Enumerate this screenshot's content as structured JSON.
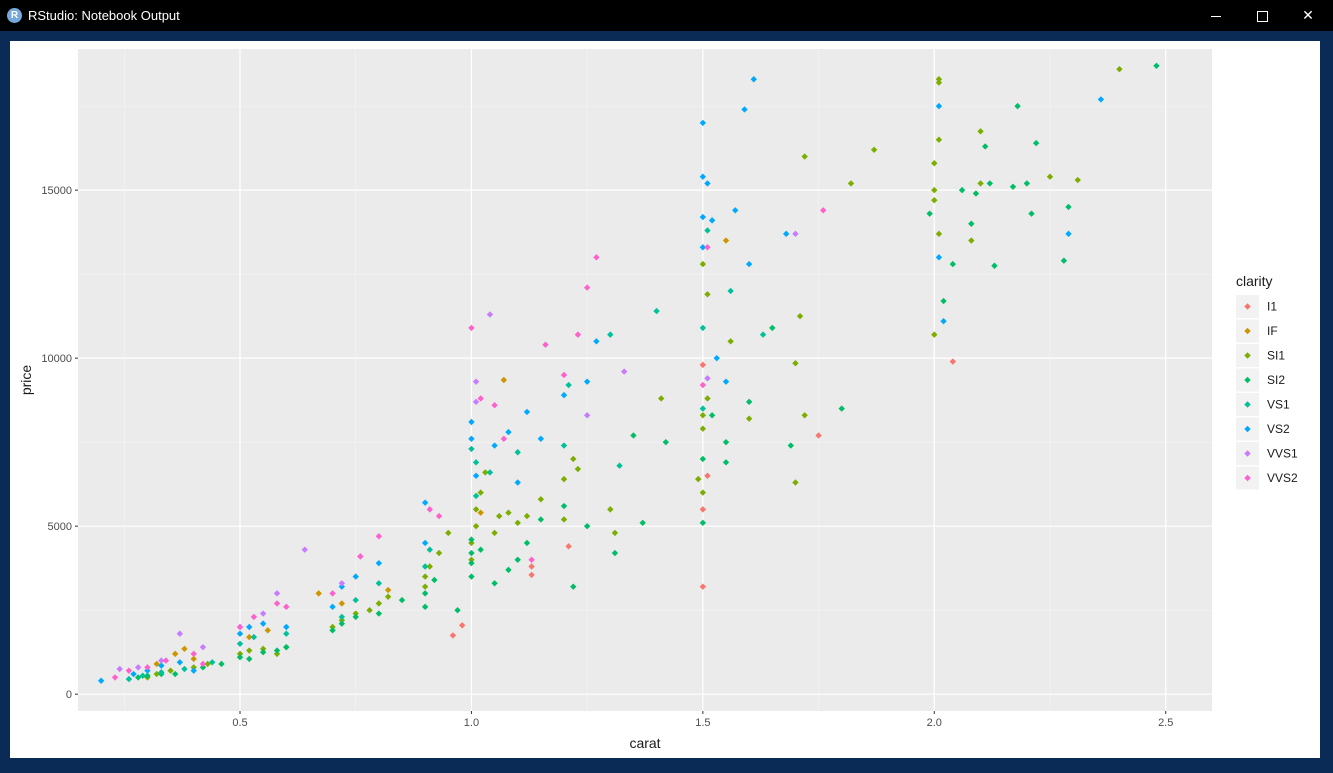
{
  "window": {
    "title": "RStudio: Notebook Output",
    "icon": "R",
    "minimize_icon": "minimize-icon",
    "maximize_icon": "maximize-icon",
    "close_icon": "close-icon",
    "close_glyph": "✕"
  },
  "chart_data": {
    "type": "scatter",
    "title": "",
    "xlabel": "carat",
    "ylabel": "price",
    "xlim": [
      0.15,
      2.6
    ],
    "ylim": [
      -500,
      19200
    ],
    "x_ticks": [
      0.5,
      1.0,
      1.5,
      2.0,
      2.5
    ],
    "x_tick_labels": [
      "0.5",
      "1.0",
      "1.5",
      "2.0",
      "2.5"
    ],
    "y_ticks": [
      0,
      5000,
      10000,
      15000
    ],
    "y_tick_labels": [
      "0",
      "5000",
      "10000",
      "15000"
    ],
    "grid": true,
    "panel_background": "#ebebeb",
    "legend": {
      "title": "clarity",
      "placement": "right"
    },
    "series": [
      {
        "name": "I1",
        "color": "#f8766d",
        "points": [
          [
            1.5,
            3200
          ],
          [
            0.96,
            1750
          ],
          [
            0.98,
            2050
          ],
          [
            1.13,
            3550
          ],
          [
            1.13,
            3800
          ],
          [
            1.21,
            4400
          ],
          [
            1.5,
            5500
          ],
          [
            1.51,
            6500
          ],
          [
            1.5,
            9800
          ],
          [
            1.75,
            7700
          ],
          [
            2.04,
            9900
          ]
        ]
      },
      {
        "name": "IF",
        "color": "#cd9600",
        "points": [
          [
            0.38,
            1350
          ],
          [
            0.36,
            1200
          ],
          [
            0.4,
            1050
          ],
          [
            0.32,
            900
          ],
          [
            0.52,
            1700
          ],
          [
            0.56,
            1900
          ],
          [
            0.67,
            3000
          ],
          [
            0.72,
            2700
          ],
          [
            0.82,
            3100
          ],
          [
            1.07,
            9350
          ],
          [
            1.02,
            5400
          ],
          [
            1.55,
            13500
          ]
        ]
      },
      {
        "name": "SI1",
        "color": "#7cae00",
        "points": [
          [
            0.3,
            500
          ],
          [
            0.32,
            600
          ],
          [
            0.35,
            700
          ],
          [
            0.4,
            800
          ],
          [
            0.43,
            900
          ],
          [
            0.5,
            1200
          ],
          [
            0.52,
            1300
          ],
          [
            0.55,
            1350
          ],
          [
            0.58,
            1200
          ],
          [
            0.6,
            1400
          ],
          [
            0.7,
            2000
          ],
          [
            0.72,
            2200
          ],
          [
            0.75,
            2400
          ],
          [
            0.78,
            2500
          ],
          [
            0.8,
            2700
          ],
          [
            0.82,
            2900
          ],
          [
            0.9,
            3200
          ],
          [
            0.9,
            3500
          ],
          [
            0.91,
            3800
          ],
          [
            0.93,
            4200
          ],
          [
            0.95,
            4800
          ],
          [
            1.0,
            4000
          ],
          [
            1.0,
            4500
          ],
          [
            1.01,
            5000
          ],
          [
            1.01,
            5500
          ],
          [
            1.02,
            6000
          ],
          [
            1.03,
            6600
          ],
          [
            1.05,
            4800
          ],
          [
            1.06,
            5300
          ],
          [
            1.08,
            5400
          ],
          [
            1.1,
            5100
          ],
          [
            1.12,
            5300
          ],
          [
            1.15,
            5800
          ],
          [
            1.2,
            5200
          ],
          [
            1.2,
            6400
          ],
          [
            1.22,
            7000
          ],
          [
            1.23,
            6700
          ],
          [
            1.3,
            5500
          ],
          [
            1.31,
            4800
          ],
          [
            1.41,
            8800
          ],
          [
            1.5,
            7900
          ],
          [
            1.5,
            8300
          ],
          [
            1.51,
            8800
          ],
          [
            1.51,
            11900
          ],
          [
            1.5,
            12800
          ],
          [
            1.5,
            6000
          ],
          [
            1.49,
            6400
          ],
          [
            1.56,
            10500
          ],
          [
            1.6,
            8200
          ],
          [
            1.7,
            9850
          ],
          [
            1.71,
            11250
          ],
          [
            1.72,
            8300
          ],
          [
            1.7,
            6300
          ],
          [
            1.72,
            16000
          ],
          [
            1.82,
            15200
          ],
          [
            1.87,
            16200
          ],
          [
            2.0,
            14700
          ],
          [
            2.0,
            15800
          ],
          [
            2.0,
            15000
          ],
          [
            2.01,
            16500
          ],
          [
            2.01,
            18200
          ],
          [
            2.01,
            18300
          ],
          [
            2.01,
            13700
          ],
          [
            2.08,
            13500
          ],
          [
            2.1,
            15200
          ],
          [
            2.1,
            16750
          ],
          [
            2.25,
            15400
          ],
          [
            2.31,
            15300
          ],
          [
            2.4,
            18600
          ],
          [
            2.0,
            10700
          ]
        ]
      },
      {
        "name": "SI2",
        "color": "#00be67",
        "points": [
          [
            0.28,
            500
          ],
          [
            0.3,
            550
          ],
          [
            0.33,
            600
          ],
          [
            0.36,
            600
          ],
          [
            0.42,
            800
          ],
          [
            0.46,
            900
          ],
          [
            0.5,
            1100
          ],
          [
            0.52,
            1050
          ],
          [
            0.55,
            1250
          ],
          [
            0.58,
            1300
          ],
          [
            0.6,
            1400
          ],
          [
            0.7,
            1900
          ],
          [
            0.72,
            2100
          ],
          [
            0.75,
            2300
          ],
          [
            0.8,
            2400
          ],
          [
            0.85,
            2800
          ],
          [
            0.9,
            2600
          ],
          [
            0.9,
            3000
          ],
          [
            0.92,
            3400
          ],
          [
            0.97,
            2500
          ],
          [
            1.0,
            3500
          ],
          [
            1.0,
            3900
          ],
          [
            1.0,
            4200
          ],
          [
            1.0,
            4600
          ],
          [
            1.02,
            4300
          ],
          [
            1.05,
            3300
          ],
          [
            1.08,
            3700
          ],
          [
            1.1,
            4000
          ],
          [
            1.12,
            4500
          ],
          [
            1.15,
            5200
          ],
          [
            1.2,
            5600
          ],
          [
            1.22,
            3200
          ],
          [
            1.25,
            5000
          ],
          [
            1.31,
            4200
          ],
          [
            1.35,
            7700
          ],
          [
            1.37,
            5100
          ],
          [
            1.42,
            7500
          ],
          [
            1.5,
            7000
          ],
          [
            1.52,
            8300
          ],
          [
            1.5,
            5100
          ],
          [
            1.55,
            6900
          ],
          [
            1.55,
            7500
          ],
          [
            1.6,
            8700
          ],
          [
            1.65,
            10900
          ],
          [
            1.69,
            7400
          ],
          [
            1.8,
            8500
          ],
          [
            1.99,
            14300
          ],
          [
            2.02,
            11700
          ],
          [
            2.04,
            12800
          ],
          [
            2.06,
            15000
          ],
          [
            2.08,
            14000
          ],
          [
            2.09,
            14900
          ],
          [
            2.12,
            15200
          ],
          [
            2.13,
            12750
          ],
          [
            2.17,
            15100
          ],
          [
            2.18,
            17500
          ],
          [
            2.2,
            15200
          ],
          [
            2.21,
            14300
          ],
          [
            2.22,
            16400
          ],
          [
            2.28,
            12900
          ],
          [
            2.29,
            14500
          ],
          [
            2.48,
            18700
          ],
          [
            2.11,
            16300
          ]
        ]
      },
      {
        "name": "VS1",
        "color": "#00c19a",
        "points": [
          [
            0.26,
            450
          ],
          [
            0.29,
            550
          ],
          [
            0.33,
            650
          ],
          [
            0.38,
            750
          ],
          [
            0.44,
            950
          ],
          [
            0.5,
            1500
          ],
          [
            0.53,
            1700
          ],
          [
            0.6,
            1800
          ],
          [
            0.72,
            2300
          ],
          [
            0.75,
            2800
          ],
          [
            0.8,
            3300
          ],
          [
            0.9,
            3800
          ],
          [
            0.91,
            4300
          ],
          [
            1.0,
            7300
          ],
          [
            1.01,
            6900
          ],
          [
            1.01,
            5900
          ],
          [
            1.04,
            6600
          ],
          [
            1.1,
            7200
          ],
          [
            1.2,
            7400
          ],
          [
            1.21,
            9200
          ],
          [
            1.3,
            10700
          ],
          [
            1.32,
            6800
          ],
          [
            1.4,
            11400
          ],
          [
            1.5,
            10900
          ],
          [
            1.5,
            8500
          ],
          [
            1.51,
            13800
          ],
          [
            1.56,
            12000
          ],
          [
            1.63,
            10700
          ]
        ]
      },
      {
        "name": "VS2",
        "color": "#00a9ff",
        "points": [
          [
            0.2,
            400
          ],
          [
            0.27,
            600
          ],
          [
            0.3,
            700
          ],
          [
            0.33,
            850
          ],
          [
            0.37,
            950
          ],
          [
            0.4,
            700
          ],
          [
            0.5,
            1800
          ],
          [
            0.52,
            2000
          ],
          [
            0.55,
            2100
          ],
          [
            0.6,
            2000
          ],
          [
            0.7,
            2600
          ],
          [
            0.72,
            3200
          ],
          [
            0.75,
            3500
          ],
          [
            0.8,
            3900
          ],
          [
            0.9,
            4500
          ],
          [
            0.9,
            5700
          ],
          [
            1.0,
            7600
          ],
          [
            1.0,
            8100
          ],
          [
            1.01,
            6500
          ],
          [
            1.05,
            7400
          ],
          [
            1.08,
            7800
          ],
          [
            1.1,
            6300
          ],
          [
            1.12,
            8400
          ],
          [
            1.15,
            7600
          ],
          [
            1.2,
            8900
          ],
          [
            1.25,
            9300
          ],
          [
            1.27,
            10500
          ],
          [
            1.5,
            17000
          ],
          [
            1.5,
            15400
          ],
          [
            1.51,
            15200
          ],
          [
            1.5,
            14200
          ],
          [
            1.52,
            14100
          ],
          [
            1.5,
            13300
          ],
          [
            1.53,
            10000
          ],
          [
            1.55,
            9300
          ],
          [
            1.59,
            17400
          ],
          [
            1.6,
            12800
          ],
          [
            1.61,
            18300
          ],
          [
            1.68,
            13700
          ],
          [
            2.01,
            17500
          ],
          [
            2.01,
            13000
          ],
          [
            2.02,
            11100
          ],
          [
            2.29,
            13700
          ],
          [
            2.36,
            17700
          ],
          [
            1.57,
            14400
          ]
        ]
      },
      {
        "name": "VVS1",
        "color": "#c77cff",
        "points": [
          [
            0.24,
            750
          ],
          [
            0.28,
            800
          ],
          [
            0.33,
            1000
          ],
          [
            0.37,
            1800
          ],
          [
            0.42,
            1400
          ],
          [
            0.5,
            2000
          ],
          [
            0.55,
            2400
          ],
          [
            0.58,
            3000
          ],
          [
            0.64,
            4300
          ],
          [
            0.72,
            3300
          ],
          [
            0.76,
            4100
          ],
          [
            1.01,
            8700
          ],
          [
            1.01,
            9300
          ],
          [
            1.04,
            11300
          ],
          [
            1.25,
            8300
          ],
          [
            1.33,
            9600
          ],
          [
            1.51,
            9400
          ],
          [
            1.7,
            13700
          ]
        ]
      },
      {
        "name": "VVS2",
        "color": "#ff61cc",
        "points": [
          [
            0.23,
            500
          ],
          [
            0.26,
            700
          ],
          [
            0.3,
            800
          ],
          [
            0.34,
            1000
          ],
          [
            0.4,
            1200
          ],
          [
            0.42,
            900
          ],
          [
            0.5,
            2000
          ],
          [
            0.53,
            2300
          ],
          [
            0.58,
            2700
          ],
          [
            0.6,
            2600
          ],
          [
            0.7,
            3000
          ],
          [
            0.76,
            4100
          ],
          [
            0.8,
            4700
          ],
          [
            0.91,
            5500
          ],
          [
            0.93,
            5300
          ],
          [
            1.0,
            10900
          ],
          [
            1.02,
            8800
          ],
          [
            1.05,
            8600
          ],
          [
            1.07,
            7600
          ],
          [
            1.13,
            4000
          ],
          [
            1.16,
            10400
          ],
          [
            1.2,
            9500
          ],
          [
            1.27,
            13000
          ],
          [
            1.25,
            12100
          ],
          [
            1.23,
            10700
          ],
          [
            1.51,
            13300
          ],
          [
            1.5,
            9200
          ],
          [
            1.76,
            14400
          ]
        ]
      }
    ]
  }
}
